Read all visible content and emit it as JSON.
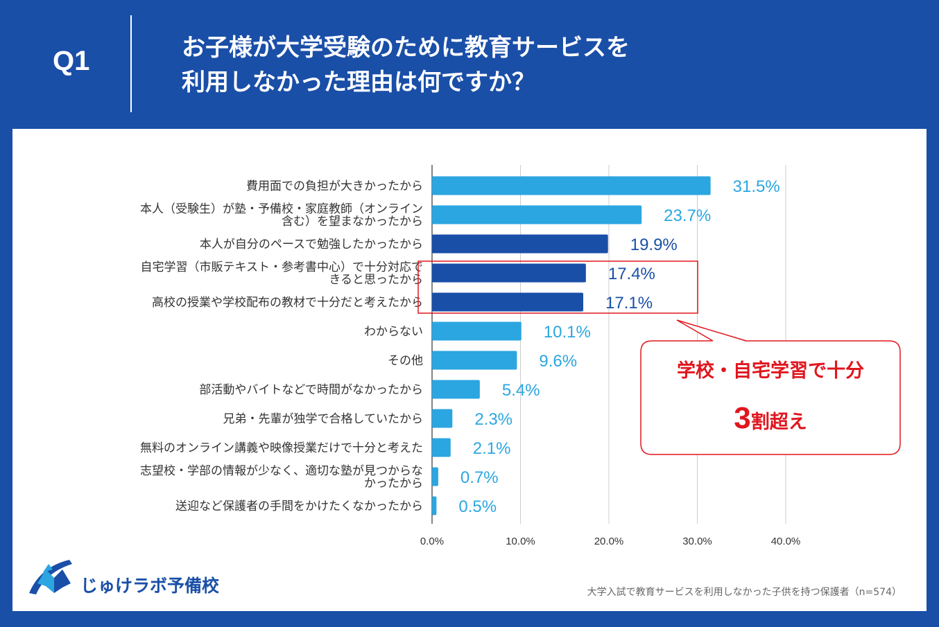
{
  "header": {
    "q_label": "Q1",
    "title_line1": "お子様が大学受験のために教育サービスを",
    "title_line2": "利用しなかった理由は何ですか？"
  },
  "chart_data": {
    "type": "bar",
    "orientation": "horizontal",
    "categories": [
      [
        "費用面での負担が大きかったから"
      ],
      [
        "本人（受験生）が塾・予備校・家庭教師（オンライン",
        "含む）を望まなかったから"
      ],
      [
        "本人が自分のペースで勉強したかったから"
      ],
      [
        "自宅学習（市販テキスト・参考書中心）で十分対応で",
        "きると思ったから"
      ],
      [
        "高校の授業や学校配布の教材で十分だと考えたから"
      ],
      [
        "わからない"
      ],
      [
        "その他"
      ],
      [
        "部活動やバイトなどで時間がなかったから"
      ],
      [
        "兄弟・先輩が独学で合格していたから"
      ],
      [
        "無料のオンライン講義や映像授業だけで十分と考えた"
      ],
      [
        "志望校・学部の情報が少なく、適切な塾が見つからな",
        "かったから"
      ],
      [
        "送迎など保護者の手間をかけたくなかったから"
      ]
    ],
    "values": [
      31.5,
      23.7,
      19.9,
      17.4,
      17.1,
      10.1,
      9.6,
      5.4,
      2.3,
      2.1,
      0.7,
      0.5
    ],
    "value_labels": [
      "31.5%",
      "23.7%",
      "19.9%",
      "17.4%",
      "17.1%",
      "10.1%",
      "9.6%",
      "5.4%",
      "2.3%",
      "2.1%",
      "0.7%",
      "0.5%"
    ],
    "highlight": [
      false,
      false,
      true,
      true,
      true,
      false,
      false,
      false,
      false,
      false,
      false,
      false
    ],
    "xlim": [
      0,
      40
    ],
    "ticks": [
      0,
      10,
      20,
      30,
      40
    ],
    "tick_labels": [
      "0.0%",
      "10.0%",
      "20.0%",
      "30.0%",
      "40.0%"
    ],
    "grid": true,
    "colors": {
      "normal_bar": "#2ba6e0",
      "highlight_bar": "#1a4fa8",
      "normal_label": "#2ba6e0",
      "highlight_label": "#1a4fa8"
    }
  },
  "callout": {
    "line1": "学校・自宅学習で十分",
    "big_number": "3",
    "suffix": "割超え",
    "color": "#e0161e"
  },
  "logo": {
    "name": "じゅけラボ予備校"
  },
  "footnote": "大学入試で教育サービスを利用しなかった子供を持つ保護者（n=574）",
  "colors": {
    "background": "#1a4fa8",
    "panel": "#ffffff"
  }
}
